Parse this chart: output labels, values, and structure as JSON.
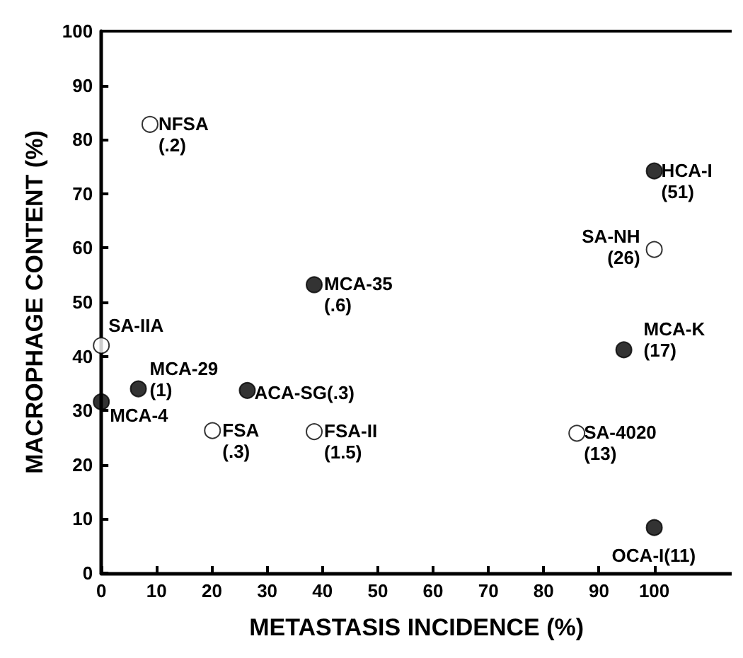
{
  "chart_data": {
    "type": "scatter",
    "xlabel": "METASTASIS INCIDENCE (%)",
    "ylabel": "MACROPHAGE CONTENT (%)",
    "xlim": [
      0,
      114
    ],
    "xticks": [
      0,
      10,
      20,
      30,
      40,
      50,
      60,
      70,
      80,
      90,
      100
    ],
    "ylim": [
      0,
      100
    ],
    "yticks": [
      0,
      10,
      20,
      30,
      40,
      50,
      60,
      70,
      80,
      90,
      100
    ],
    "grid": false,
    "marker": "circle",
    "series": [
      {
        "color": "#ffffff",
        "x": [
          8.8,
          100,
          0,
          20.1,
          38.5,
          86
        ],
        "values": [
          82.8,
          59.7,
          42,
          26.3,
          26.1,
          25.8
        ]
      },
      {
        "color": "#000000",
        "x": [
          100,
          38.5,
          6.7,
          0,
          26.4,
          94.5,
          100
        ],
        "values": [
          74.2,
          53.2,
          34,
          31.6,
          33.7,
          41.2,
          8.4
        ]
      }
    ],
    "annotations": [
      {
        "text": "NFSA\n(.2)",
        "x": 8.8,
        "y": 82.8
      },
      {
        "text": "SA-NH\n(26)",
        "x": 100,
        "y": 59.7
      },
      {
        "text": "SA-IIA",
        "x": 0,
        "y": 42
      },
      {
        "text": "FSA\n(.3)",
        "x": 20.1,
        "y": 26.3
      },
      {
        "text": "FSA-II\n(1.5)",
        "x": 38.5,
        "y": 26.1
      },
      {
        "text": "SA-4020\n(13)",
        "x": 86,
        "y": 25.8
      },
      {
        "text": "HCA-I\n(51)",
        "x": 100,
        "y": 74.2
      },
      {
        "text": "MCA-35\n(.6)",
        "x": 38.5,
        "y": 53.2
      },
      {
        "text": "MCA-29\n(1)",
        "x": 6.7,
        "y": 34
      },
      {
        "text": "MCA-4",
        "x": 0,
        "y": 31.6
      },
      {
        "text": "ACA-SG(.3)",
        "x": 26.4,
        "y": 33.7
      },
      {
        "text": "MCA-K\n(17)",
        "x": 94.5,
        "y": 41.2
      },
      {
        "text": "OCA-I(11)",
        "x": 100,
        "y": 8.4
      }
    ]
  }
}
